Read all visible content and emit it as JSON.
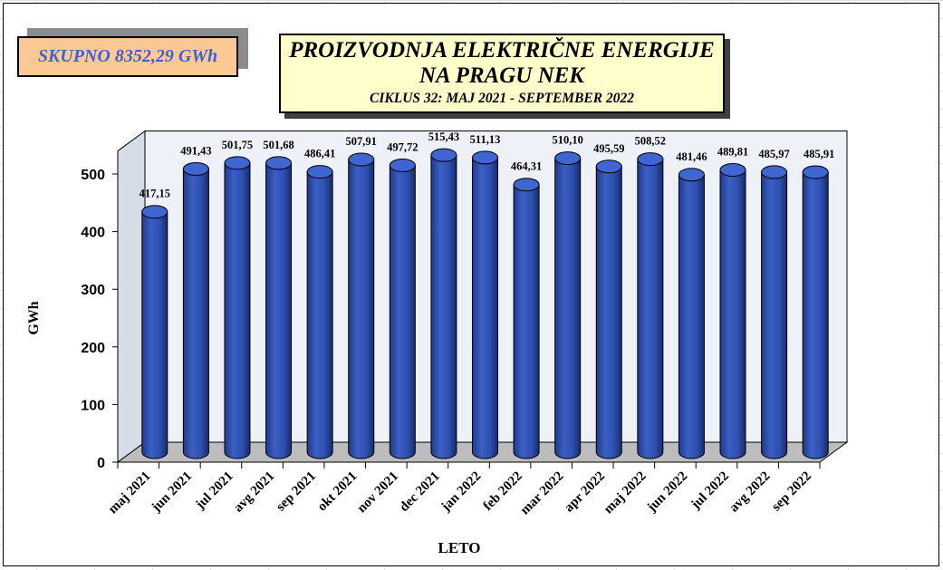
{
  "total_box": {
    "text": "SKUPNO 8352,29 GWh"
  },
  "title": {
    "line1": "PROIZVODNJA ELEKTRIČNE ENERGIJE",
    "line2": "NA PRAGU NEK",
    "line3": "CIKLUS 32: MAJ 2021 - SEPTEMBER 2022"
  },
  "chart_data": {
    "type": "bar",
    "style": "3d-cylinder",
    "xlabel": "LETO",
    "ylabel": "GWh",
    "ylim": [
      0,
      500
    ],
    "yticks": [
      0,
      100,
      200,
      300,
      400,
      500
    ],
    "grid": false,
    "bar_color": "#3355b8",
    "categories": [
      "maj 2021",
      "jun 2021",
      "jul 2021",
      "avg 2021",
      "sep 2021",
      "okt 2021",
      "nov 2021",
      "dec 2021",
      "jan 2022",
      "feb 2022",
      "mar 2022",
      "apr 2022",
      "maj 2022",
      "jun 2022",
      "jul 2022",
      "avg 2022",
      "sep 2022"
    ],
    "values": [
      417.15,
      491.43,
      501.75,
      501.68,
      486.41,
      507.91,
      497.72,
      515.43,
      511.13,
      464.31,
      510.1,
      495.59,
      508.52,
      481.46,
      489.81,
      485.97,
      485.91
    ],
    "value_labels": [
      "417,15",
      "491,43",
      "501,75",
      "501,68",
      "486,41",
      "507,91",
      "497,72",
      "515,43",
      "511,13",
      "464,31",
      "510,10",
      "495,59",
      "508,52",
      "481,46",
      "489,81",
      "485,97",
      "485,91"
    ]
  }
}
